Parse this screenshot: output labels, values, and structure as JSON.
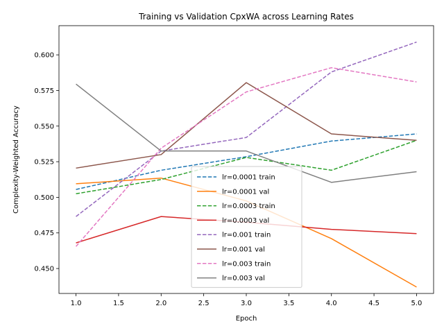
{
  "chart_data": {
    "type": "line",
    "title": "Training vs Validation CpxWA across Learning Rates",
    "xlabel": "Epoch",
    "ylabel": "Complexity-Weighted Accuracy",
    "xlim": [
      0.8,
      5.2
    ],
    "ylim": [
      0.4325,
      0.6205
    ],
    "xticks": [
      "1.0",
      "1.5",
      "2.0",
      "2.5",
      "3.0",
      "3.5",
      "4.0",
      "4.5",
      "5.0"
    ],
    "yticks": [
      "0.450",
      "0.475",
      "0.500",
      "0.525",
      "0.550",
      "0.575",
      "0.600"
    ],
    "grid": false,
    "legend_position": "lower center",
    "x": [
      1,
      2,
      3,
      4,
      5
    ],
    "series": [
      {
        "name": "lr=0.0001 train",
        "color": "#1f77b4",
        "style": "dashed",
        "values": [
          0.5055,
          0.519,
          0.5285,
          0.5395,
          0.5445
        ]
      },
      {
        "name": "lr=0.0001 val",
        "color": "#ff7f0e",
        "style": "solid",
        "values": [
          0.5095,
          0.5135,
          0.4975,
          0.471,
          0.437
        ]
      },
      {
        "name": "lr=0.0003 train",
        "color": "#2ca02c",
        "style": "dashed",
        "values": [
          0.5025,
          0.5125,
          0.528,
          0.519,
          0.54
        ]
      },
      {
        "name": "lr=0.0003 val",
        "color": "#d62728",
        "style": "solid",
        "values": [
          0.468,
          0.4865,
          0.4825,
          0.4775,
          0.4745
        ]
      },
      {
        "name": "lr=0.001 train",
        "color": "#9467bd",
        "style": "dashed",
        "values": [
          0.4865,
          0.5325,
          0.542,
          0.588,
          0.609
        ]
      },
      {
        "name": "lr=0.001 val",
        "color": "#8c564b",
        "style": "solid",
        "values": [
          0.5205,
          0.53,
          0.5805,
          0.5445,
          0.54
        ]
      },
      {
        "name": "lr=0.003 train",
        "color": "#e377c2",
        "style": "dashed",
        "values": [
          0.4655,
          0.5345,
          0.574,
          0.591,
          0.581
        ]
      },
      {
        "name": "lr=0.003 val",
        "color": "#7f7f7f",
        "style": "solid",
        "values": [
          0.5795,
          0.5325,
          0.5325,
          0.5105,
          0.518
        ]
      }
    ]
  }
}
